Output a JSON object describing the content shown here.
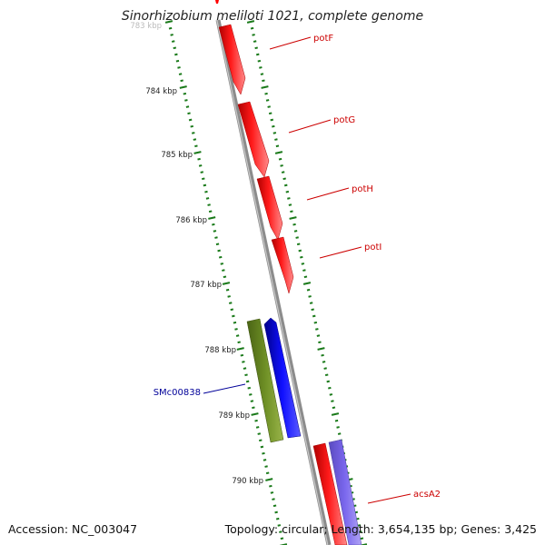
{
  "title": "Sinorhizobium meliloti 1021, complete genome",
  "accession": "Accession: NC_003047",
  "summary": "Topology: circular; Length: 3,654,135 bp; Genes: 3,425",
  "scale_labels": [
    {
      "label": "783 kbp",
      "faded": true
    },
    {
      "label": "784 kbp",
      "faded": false
    },
    {
      "label": "785 kbp",
      "faded": false
    },
    {
      "label": "786 kbp",
      "faded": false
    },
    {
      "label": "787 kbp",
      "faded": false
    },
    {
      "label": "788 kbp",
      "faded": false
    },
    {
      "label": "789 kbp",
      "faded": false
    },
    {
      "label": "790 kbp",
      "faded": false
    }
  ],
  "genes": [
    {
      "name": "potF",
      "strand": "forward",
      "color": "#ff0000"
    },
    {
      "name": "potG",
      "strand": "forward",
      "color": "#ff0000"
    },
    {
      "name": "potH",
      "strand": "forward",
      "color": "#ff0000"
    },
    {
      "name": "potI",
      "strand": "forward",
      "color": "#ff0000"
    },
    {
      "name": "SMc00838",
      "strand": "reverse",
      "color": "#0000ee"
    },
    {
      "name": "acsA2",
      "strand": "forward",
      "color": "#ff0000"
    }
  ],
  "colors": {
    "backbone": "#8c8c8c",
    "tick": "#1a7a1a",
    "cds_red": "#ff0000",
    "cds_blue": "#0000ee",
    "olive": "#6b8e23",
    "lavender": "#7b68ee",
    "label_red": "#cc0000",
    "label_blue": "#000099"
  }
}
